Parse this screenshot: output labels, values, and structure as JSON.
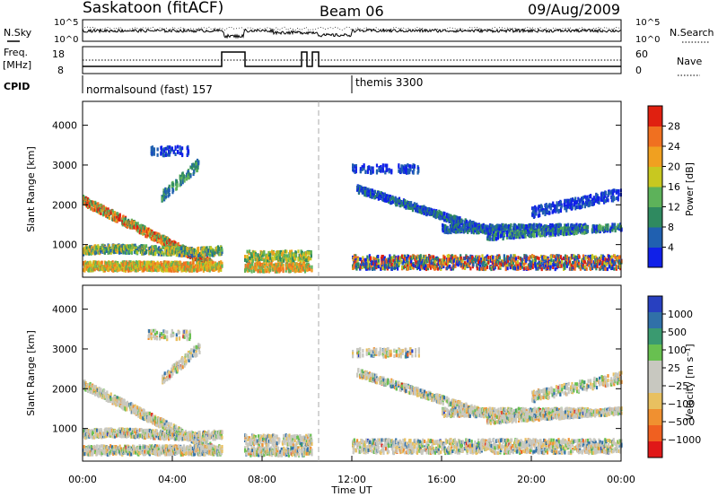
{
  "header": {
    "station": "Saskatoon (fitACF)",
    "beam": "Beam 06",
    "date": "09/Aug/2009"
  },
  "aux_panels": {
    "nsky": {
      "label": "N.Sky",
      "right_label": "N.Search",
      "ticks": [
        "10^5",
        "10^0"
      ],
      "right_ticks": [
        "10^5",
        "10^0"
      ]
    },
    "freq": {
      "label_line1": "Freq.",
      "label_line2": "[MHz]",
      "ticks": [
        "18",
        "8"
      ],
      "right_label": "Nave",
      "right_ticks": [
        "60",
        "0"
      ]
    },
    "cpid": {
      "label": "CPID",
      "segments": [
        {
          "start_hour": 0,
          "text": "normalsound (fast) 157"
        },
        {
          "start_hour": 12,
          "text": "themis 3300"
        }
      ]
    }
  },
  "time_axis": {
    "title": "Time UT",
    "ticks": [
      "00:00",
      "04:00",
      "08:00",
      "12:00",
      "16:00",
      "20:00",
      "00:00"
    ]
  },
  "chart_data": [
    {
      "type": "heatmap",
      "quantity": "Power",
      "ylabel": "Slant Range [km]",
      "yticks": [
        1000,
        2000,
        3000,
        4000
      ],
      "ylim": [
        180,
        4600
      ],
      "xlim_hours": [
        0,
        24
      ],
      "colorbar": {
        "label": "Power [dB]",
        "ticks": [
          "4",
          "8",
          "12",
          "16",
          "20",
          "24",
          "28"
        ],
        "colors": [
          "#1020e8",
          "#2060b0",
          "#2f8a60",
          "#5db25a",
          "#c8c820",
          "#f0a020",
          "#f07020",
          "#e02010"
        ]
      }
    },
    {
      "type": "heatmap",
      "quantity": "Velocity",
      "ylabel": "Slant Range [km]",
      "yticks": [
        1000,
        2000,
        3000,
        4000
      ],
      "ylim": [
        180,
        4600
      ],
      "xlim_hours": [
        0,
        24
      ],
      "colorbar": {
        "label": "Velocity [m s⁻¹]",
        "ticks": [
          "1000",
          "500",
          "100",
          "25",
          "−25",
          "−100",
          "−500",
          "−1000"
        ],
        "colors": [
          "#2840c0",
          "#3070a8",
          "#3a9a70",
          "#68c050",
          "#c8c8c0",
          "#c8c8c0",
          "#e8c060",
          "#f09030",
          "#f06020",
          "#e01818"
        ]
      }
    }
  ]
}
